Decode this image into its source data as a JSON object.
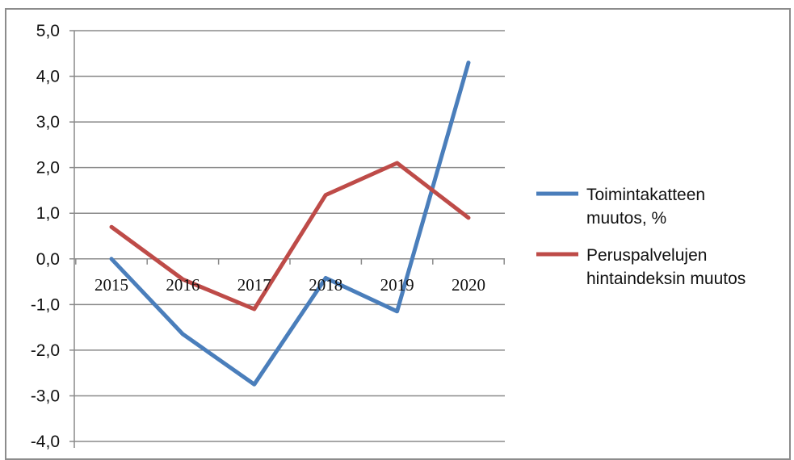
{
  "chart_data": {
    "type": "line",
    "categories": [
      "2015",
      "2016",
      "2017",
      "2018",
      "2019",
      "2020"
    ],
    "ylim": [
      -4.0,
      5.0
    ],
    "yticks": [
      "5,0",
      "4,0",
      "3,0",
      "2,0",
      "1,0",
      "0,0",
      "-1,0",
      "-2,0",
      "-3,0",
      "-4,0"
    ],
    "grid": true,
    "legend_position": "right",
    "series": [
      {
        "name_lines": [
          "Toimintakatteen",
          "muutos, %"
        ],
        "color": "#4a7ebb",
        "values": [
          0.0,
          -1.65,
          -2.75,
          -0.42,
          -1.15,
          4.3
        ]
      },
      {
        "name_lines": [
          "Peruspalvelujen",
          "hintaindeksin muutos"
        ],
        "color": "#be4b48",
        "values": [
          0.7,
          -0.45,
          -1.1,
          1.4,
          2.1,
          0.9
        ]
      }
    ]
  }
}
